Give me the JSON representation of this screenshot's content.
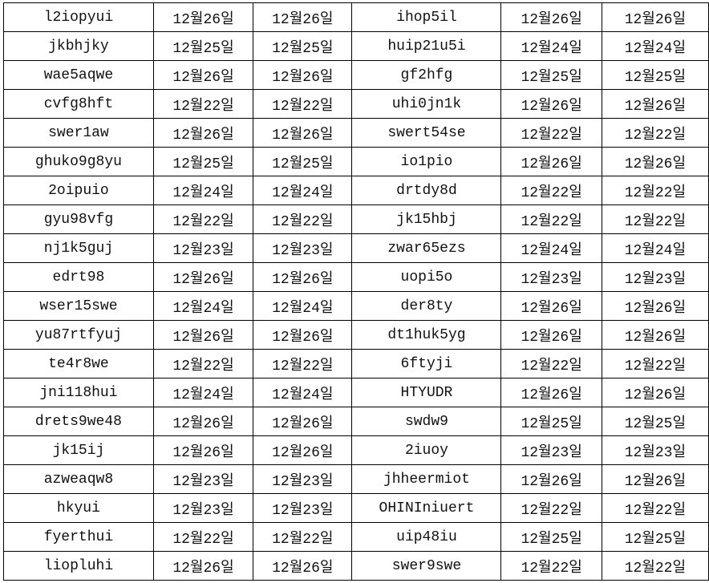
{
  "rows": [
    [
      "l2iopyui",
      "12월26일",
      "12월26일",
      "ihop5il",
      "12월26일",
      "12월26일"
    ],
    [
      "jkbhjky",
      "12월25일",
      "12월25일",
      "huip21u5i",
      "12월24일",
      "12월24일"
    ],
    [
      "wae5aqwe",
      "12월26일",
      "12월26일",
      "gf2hfg",
      "12월25일",
      "12월25일"
    ],
    [
      "cvfg8hft",
      "12월22일",
      "12월22일",
      "uhi0jn1k",
      "12월26일",
      "12월26일"
    ],
    [
      "swer1aw",
      "12월26일",
      "12월26일",
      "swert54se",
      "12월22일",
      "12월22일"
    ],
    [
      "ghuko9g8yu",
      "12월25일",
      "12월25일",
      "io1pio",
      "12월26일",
      "12월26일"
    ],
    [
      "2oipuio",
      "12월24일",
      "12월24일",
      "drtdy8d",
      "12월22일",
      "12월22일"
    ],
    [
      "gyu98vfg",
      "12월22일",
      "12월22일",
      "jk15hbj",
      "12월22일",
      "12월22일"
    ],
    [
      "nj1k5guj",
      "12월23일",
      "12월23일",
      "zwar65ezs",
      "12월24일",
      "12월24일"
    ],
    [
      "edrt98",
      "12월26일",
      "12월26일",
      "uopi5o",
      "12월23일",
      "12월23일"
    ],
    [
      "wser15swe",
      "12월24일",
      "12월24일",
      "der8ty",
      "12월26일",
      "12월26일"
    ],
    [
      "yu87rtfyuj",
      "12월26일",
      "12월26일",
      "dt1huk5yg",
      "12월26일",
      "12월26일"
    ],
    [
      "te4r8we",
      "12월22일",
      "12월22일",
      "6ftyji",
      "12월22일",
      "12월22일"
    ],
    [
      "jni118hui",
      "12월24일",
      "12월24일",
      "HTYUDR",
      "12월26일",
      "12월26일"
    ],
    [
      "drets9we48",
      "12월26일",
      "12월26일",
      "swdw9",
      "12월25일",
      "12월25일"
    ],
    [
      "jk15ij",
      "12월26일",
      "12월26일",
      "2iuoy",
      "12월23일",
      "12월23일"
    ],
    [
      "azweaqw8",
      "12월23일",
      "12월23일",
      "jhheermiot",
      "12월26일",
      "12월26일"
    ],
    [
      "hkyui",
      "12월23일",
      "12월23일",
      "OHINIniuert",
      "12월22일",
      "12월22일"
    ],
    [
      "fyerthui",
      "12월22일",
      "12월22일",
      "uip48iu",
      "12월25일",
      "12월25일"
    ],
    [
      "liopluhi",
      "12월26일",
      "12월26일",
      "swer9swe",
      "12월22일",
      "12월22일"
    ]
  ]
}
